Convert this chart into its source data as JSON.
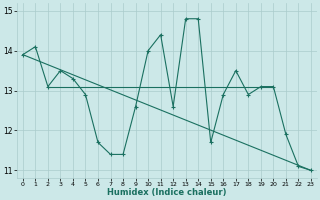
{
  "x": [
    0,
    1,
    2,
    3,
    4,
    5,
    6,
    7,
    8,
    9,
    10,
    11,
    12,
    13,
    14,
    15,
    16,
    17,
    18,
    19,
    20,
    21,
    22,
    23
  ],
  "y_main": [
    13.9,
    14.1,
    13.1,
    13.5,
    13.3,
    12.9,
    11.7,
    11.4,
    11.4,
    12.6,
    14.0,
    14.4,
    12.6,
    14.8,
    14.8,
    11.7,
    12.9,
    13.5,
    12.9,
    13.1,
    13.1,
    11.9,
    11.1,
    11.0
  ],
  "trend_x": [
    0,
    23
  ],
  "trend_y": [
    13.9,
    11.0
  ],
  "hline_y": 13.1,
  "hline_x_start": 2,
  "hline_x_end": 20,
  "xlabel": "Humidex (Indice chaleur)",
  "ylim": [
    10.8,
    15.2
  ],
  "xlim": [
    -0.5,
    23.5
  ],
  "yticks": [
    11,
    12,
    13,
    14,
    15
  ],
  "xticks": [
    0,
    1,
    2,
    3,
    4,
    5,
    6,
    7,
    8,
    9,
    10,
    11,
    12,
    13,
    14,
    15,
    16,
    17,
    18,
    19,
    20,
    21,
    22,
    23
  ],
  "line_color": "#1a7060",
  "bg_color": "#cce8e8",
  "grid_color": "#aacccc"
}
